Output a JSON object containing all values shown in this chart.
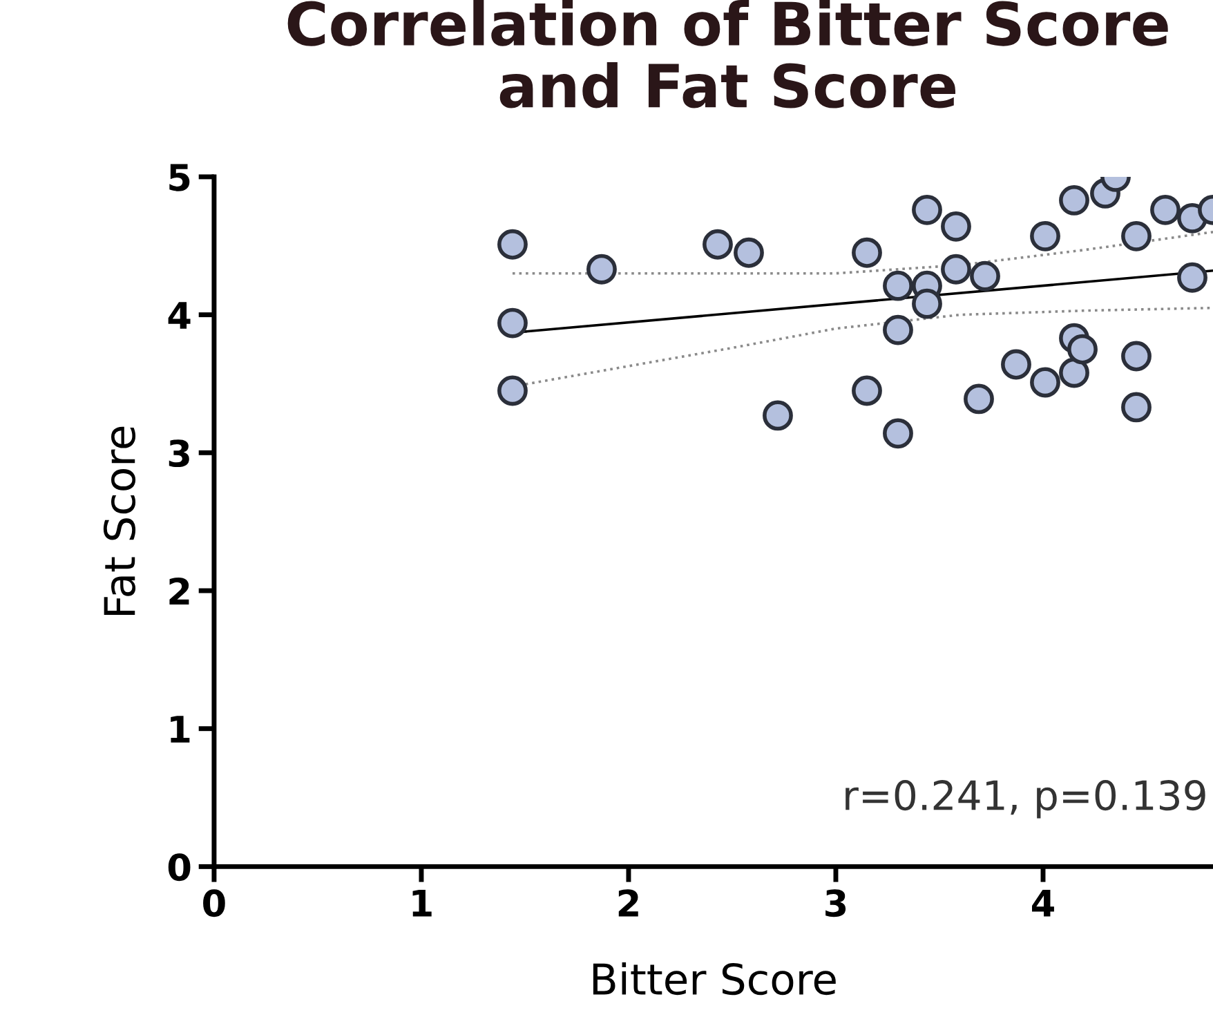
{
  "chart_data": {
    "type": "scatter",
    "title": "Correlation of Bitter Score\nand Fat Score",
    "xlabel": "Bitter Score",
    "ylabel": "Fat Score",
    "xlim": [
      0,
      4.82
    ],
    "ylim": [
      0,
      5
    ],
    "xticks": [
      0,
      1,
      2,
      3,
      4
    ],
    "yticks": [
      0,
      1,
      2,
      3,
      4,
      5
    ],
    "grid": false,
    "legend": false,
    "annotations": [
      "r=0.241, p=0.139"
    ],
    "series": [
      {
        "color": "#b4c0de",
        "marker": "circle",
        "x": [
          1.44,
          1.44,
          1.44,
          1.87,
          2.43,
          2.58,
          2.72,
          3.15,
          3.15,
          3.3,
          3.3,
          3.3,
          3.44,
          3.44,
          3.44,
          3.58,
          3.58,
          3.72,
          3.69,
          3.87,
          4.01,
          4.15,
          4.15,
          4.19,
          4.01,
          4.15,
          4.3,
          4.35,
          4.45,
          4.45,
          4.45,
          4.59,
          4.72,
          4.72,
          4.82
        ],
        "values": [
          4.51,
          3.94,
          3.45,
          4.33,
          4.51,
          4.45,
          3.27,
          4.45,
          3.45,
          4.21,
          3.89,
          3.14,
          4.76,
          4.21,
          4.08,
          4.33,
          4.64,
          4.28,
          3.39,
          3.64,
          3.51,
          3.58,
          3.83,
          3.75,
          4.57,
          4.83,
          4.88,
          5.0,
          4.57,
          3.7,
          3.33,
          4.76,
          4.7,
          4.27,
          4.76
        ]
      },
      {
        "type": "line",
        "color": "#000000",
        "line_style": "solid",
        "marker": "none",
        "x": [
          1.44,
          4.82
        ],
        "values": [
          3.87,
          4.32
        ]
      },
      {
        "type": "line",
        "color": "#8a8a8a",
        "line_style": "dotted",
        "marker": "none",
        "x": [
          1.44,
          2.5,
          3.0,
          3.6,
          4.2,
          4.82
        ],
        "values": [
          3.48,
          3.76,
          3.9,
          4.0,
          4.03,
          4.05
        ]
      },
      {
        "type": "line",
        "color": "#8a8a8a",
        "line_style": "dotted",
        "marker": "none",
        "x": [
          1.44,
          2.5,
          3.0,
          3.6,
          4.2,
          4.82
        ],
        "values": [
          4.3,
          4.3,
          4.3,
          4.36,
          4.47,
          4.6
        ]
      }
    ]
  }
}
